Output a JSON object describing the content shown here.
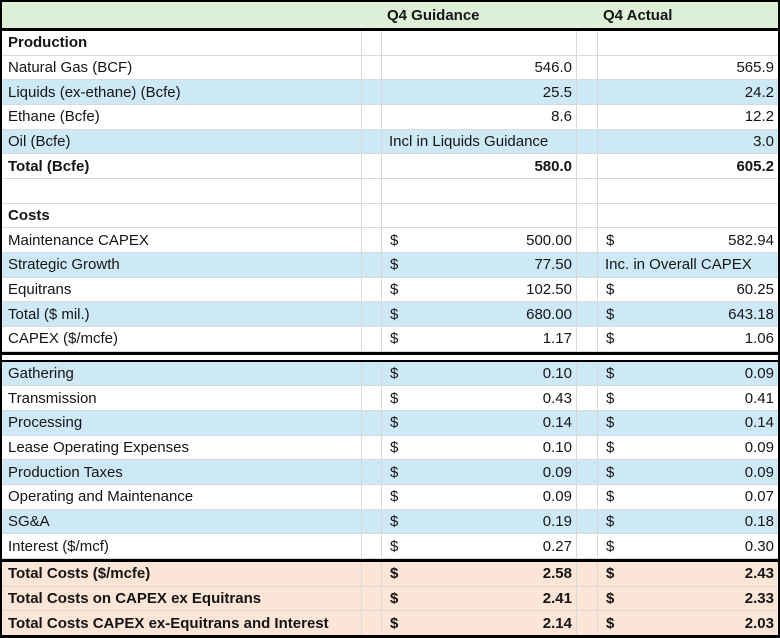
{
  "colors": {
    "header_green": "#ddefd6",
    "row_blue": "#cde9f6",
    "total_peach": "#fbe5d6",
    "gridline": "#d9d9d9",
    "border_black": "#000000"
  },
  "columns": {
    "guidance": "Q4 Guidance",
    "actual": "Q4 Actual"
  },
  "rows": [
    {
      "label": "Production",
      "bold": true,
      "bg": "white",
      "guidance": {
        "type": "empty"
      },
      "actual": {
        "type": "empty"
      }
    },
    {
      "label": "Natural Gas (BCF)",
      "bg": "white",
      "guidance": {
        "type": "number",
        "value": "546.0"
      },
      "actual": {
        "type": "number",
        "value": "565.9"
      }
    },
    {
      "label": "Liquids (ex-ethane) (Bcfe)",
      "bg": "blue",
      "guidance": {
        "type": "number",
        "value": "25.5"
      },
      "actual": {
        "type": "number",
        "value": "24.2"
      }
    },
    {
      "label": "Ethane (Bcfe)",
      "bg": "white",
      "guidance": {
        "type": "number",
        "value": "8.6"
      },
      "actual": {
        "type": "number",
        "value": "12.2"
      }
    },
    {
      "label": "Oil (Bcfe)",
      "bg": "blue",
      "guidance": {
        "type": "note",
        "value": "Incl in Liquids Guidance"
      },
      "actual": {
        "type": "number",
        "value": "3.0"
      }
    },
    {
      "label": "Total (Bcfe)",
      "bold": true,
      "bg": "white",
      "guidance": {
        "type": "number",
        "value": "580.0"
      },
      "actual": {
        "type": "number",
        "value": "605.2"
      }
    },
    {
      "label": "",
      "bg": "white",
      "guidance": {
        "type": "empty"
      },
      "actual": {
        "type": "empty"
      }
    },
    {
      "label": "Costs",
      "bold": true,
      "bg": "white",
      "guidance": {
        "type": "empty"
      },
      "actual": {
        "type": "empty"
      }
    },
    {
      "label": "Maintenance CAPEX",
      "bg": "white",
      "guidance": {
        "type": "money",
        "prefix": "$",
        "value": "500.00"
      },
      "actual": {
        "type": "money",
        "prefix": "$",
        "value": "582.94"
      }
    },
    {
      "label": "Strategic Growth",
      "bg": "blue",
      "guidance": {
        "type": "money",
        "prefix": "$",
        "value": "77.50"
      },
      "actual": {
        "type": "note",
        "value": "Inc. in Overall CAPEX"
      }
    },
    {
      "label": "Equitrans",
      "bg": "white",
      "guidance": {
        "type": "money",
        "prefix": "$",
        "value": "102.50"
      },
      "actual": {
        "type": "money",
        "prefix": "$",
        "value": "60.25"
      }
    },
    {
      "label": "Total ($ mil.)",
      "bg": "blue",
      "guidance": {
        "type": "money",
        "prefix": "$",
        "value": "680.00"
      },
      "actual": {
        "type": "money",
        "prefix": "$",
        "value": "643.18"
      }
    },
    {
      "label": "CAPEX ($/mcfe)",
      "bg": "white",
      "divider_below": true,
      "guidance": {
        "type": "money",
        "prefix": "$",
        "value": "1.17"
      },
      "actual": {
        "type": "money",
        "prefix": "$",
        "value": "1.06"
      }
    },
    {
      "label": "Gathering",
      "bg": "blue",
      "guidance": {
        "type": "money",
        "prefix": "$",
        "value": "0.10"
      },
      "actual": {
        "type": "money",
        "prefix": "$",
        "value": "0.09"
      }
    },
    {
      "label": "Transmission",
      "bg": "white",
      "guidance": {
        "type": "money",
        "prefix": "$",
        "value": "0.43"
      },
      "actual": {
        "type": "money",
        "prefix": "$",
        "value": "0.41"
      }
    },
    {
      "label": "Processing",
      "bg": "blue",
      "guidance": {
        "type": "money",
        "prefix": "$",
        "value": "0.14"
      },
      "actual": {
        "type": "money",
        "prefix": "$",
        "value": "0.14"
      }
    },
    {
      "label": "Lease Operating Expenses",
      "bg": "white",
      "guidance": {
        "type": "money",
        "prefix": "$",
        "value": "0.10"
      },
      "actual": {
        "type": "money",
        "prefix": "$",
        "value": "0.09"
      }
    },
    {
      "label": "Production Taxes",
      "bg": "blue",
      "guidance": {
        "type": "money",
        "prefix": "$",
        "value": "0.09"
      },
      "actual": {
        "type": "money",
        "prefix": "$",
        "value": "0.09"
      }
    },
    {
      "label": "Operating and Maintenance",
      "bg": "white",
      "guidance": {
        "type": "money",
        "prefix": "$",
        "value": "0.09"
      },
      "actual": {
        "type": "money",
        "prefix": "$",
        "value": "0.07"
      }
    },
    {
      "label": "SG&A",
      "bg": "blue",
      "guidance": {
        "type": "money",
        "prefix": "$",
        "value": "0.19"
      },
      "actual": {
        "type": "money",
        "prefix": "$",
        "value": "0.18"
      }
    },
    {
      "label": "Interest ($/mcf)",
      "bg": "white",
      "guidance": {
        "type": "money",
        "prefix": "$",
        "value": "0.27"
      },
      "actual": {
        "type": "money",
        "prefix": "$",
        "value": "0.30"
      }
    },
    {
      "label": "Total Costs ($/mcfe)",
      "bg": "peach",
      "bold": true,
      "rule_above": true,
      "guidance": {
        "type": "money",
        "prefix": "$",
        "value": "2.58"
      },
      "actual": {
        "type": "money",
        "prefix": "$",
        "value": "2.43"
      }
    },
    {
      "label": "Total Costs on CAPEX ex Equitrans",
      "bg": "peach",
      "bold": true,
      "guidance": {
        "type": "money",
        "prefix": "$",
        "value": "2.41"
      },
      "actual": {
        "type": "money",
        "prefix": "$",
        "value": "2.33"
      }
    },
    {
      "label": "Total Costs CAPEX ex-Equitrans and Interest",
      "bg": "peach",
      "bold": true,
      "guidance": {
        "type": "money",
        "prefix": "$",
        "value": "2.14"
      },
      "actual": {
        "type": "money",
        "prefix": "$",
        "value": "2.03"
      }
    }
  ]
}
